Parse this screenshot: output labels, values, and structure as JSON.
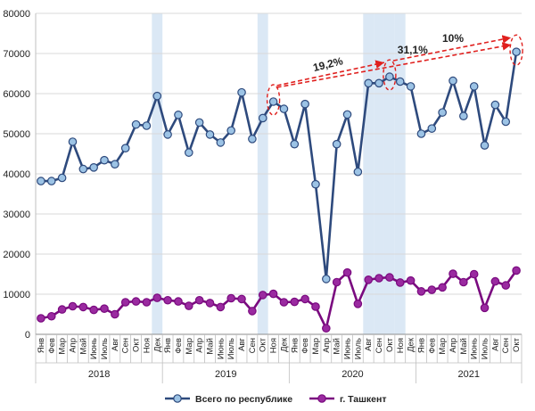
{
  "chart_data": {
    "type": "line",
    "x": [
      "Янв",
      "Фев",
      "Мар",
      "Апр",
      "Май",
      "Июнь",
      "Июль",
      "Авг",
      "Сен",
      "Окт",
      "Ноя",
      "Дек",
      "Янв",
      "Фев",
      "Мар",
      "Апр",
      "Май",
      "Июнь",
      "Июль",
      "Авг",
      "Сен",
      "Окт",
      "Ноя",
      "Дек",
      "Янв",
      "Фев",
      "Мар",
      "Апр",
      "Май",
      "Июнь",
      "Июль",
      "Авг",
      "Сен",
      "Окт",
      "Ноя",
      "Дек",
      "Янв",
      "Фев",
      "Мар",
      "Апр",
      "Май",
      "Июнь",
      "Июль",
      "Авг",
      "Сен",
      "Окт"
    ],
    "years": [
      {
        "label": "2018",
        "months": 12
      },
      {
        "label": "2019",
        "months": 12
      },
      {
        "label": "2020",
        "months": 12
      },
      {
        "label": "2021",
        "months": 10
      }
    ],
    "ylim": [
      0,
      80000
    ],
    "yticks": [
      "0",
      "10000",
      "20000",
      "30000",
      "40000",
      "50000",
      "60000",
      "70000",
      "80000"
    ],
    "grid": true,
    "legend_position": "bottom",
    "series": [
      {
        "name": "Всего по республике",
        "color": "#2e4a7d",
        "marker_color": "#9cc3e5",
        "values": [
          38200,
          38200,
          39000,
          48000,
          41200,
          41600,
          43400,
          42400,
          46400,
          52300,
          52000,
          59400,
          49800,
          54700,
          45300,
          52800,
          49800,
          47800,
          50800,
          60300,
          48700,
          53900,
          58000,
          56200,
          47400,
          57400,
          37400,
          13800,
          47400,
          54800,
          40500,
          62600,
          62600,
          64200,
          63000,
          61800,
          50000,
          51300,
          55300,
          63200,
          54400,
          61800,
          47100,
          57200,
          53000,
          70400
        ]
      },
      {
        "name": "г. Ташкент",
        "color": "#7a0a7f",
        "marker_color": "#9a2aa0",
        "values": [
          4000,
          4500,
          6200,
          7000,
          6800,
          6100,
          6400,
          5000,
          8000,
          8200,
          8000,
          9100,
          8500,
          8200,
          7100,
          8500,
          7800,
          6800,
          9000,
          8800,
          5800,
          9800,
          10100,
          8000,
          8100,
          8800,
          6900,
          1500,
          13000,
          15400,
          7600,
          13600,
          14000,
          14200,
          12900,
          13400,
          10700,
          11100,
          11700,
          15100,
          13000,
          15000,
          6600,
          13200,
          12200,
          15900
        ]
      }
    ],
    "shaded_months": [
      11,
      21,
      31,
      32,
      33,
      34
    ],
    "annotations": [
      {
        "text": "19,2%",
        "from": 22,
        "to": 33
      },
      {
        "text": "10%",
        "from": 33,
        "to": 45
      },
      {
        "text": "31,1%",
        "from": 22,
        "to": 45
      }
    ]
  }
}
